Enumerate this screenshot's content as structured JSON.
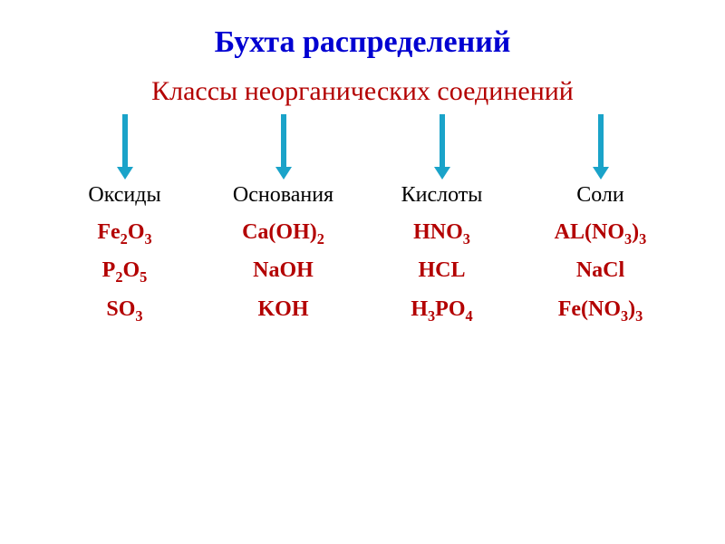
{
  "header": {
    "title": "Бухта распределений",
    "title_color": "#0000d1",
    "title_fontsize": 34,
    "subtitle": "Классы неорганических соединений",
    "subtitle_color": "#b30000",
    "subtitle_fontsize": 30,
    "subtitle_margin_top": 18
  },
  "arrow": {
    "shaft_color": "#1aa3c9",
    "head_color": "#1aa3c9",
    "count": 4,
    "length": 72,
    "shaft_width": 6,
    "head_width": 18,
    "head_height": 14
  },
  "columns": {
    "header_fontsize": 24,
    "header_color": "#000000",
    "formula_color": "#b30000",
    "formula_fontsize": 24,
    "list": [
      {
        "header": "Оксиды",
        "items": [
          {
            "html": "Fe<sub>2</sub>O<sub>3</sub>"
          },
          {
            "html": "P<sub>2</sub>O<sub>5</sub>"
          },
          {
            "html": "SO<sub>3</sub>"
          }
        ]
      },
      {
        "header": "Основания",
        "items": [
          {
            "html": "Ca(OH)<sub>2</sub>"
          },
          {
            "html": "NaOH"
          },
          {
            "html": "KOH"
          }
        ]
      },
      {
        "header": "Кислоты",
        "items": [
          {
            "html": "HNO<sub>3</sub>",
            "bold_extra": true
          },
          {
            "html": "HCL"
          },
          {
            "html": "H<sub>3</sub>PO<sub>4</sub>"
          }
        ]
      },
      {
        "header": "Соли",
        "items": [
          {
            "html": "AL(NO<sub>3</sub>)<sub>3</sub>"
          },
          {
            "html": "NaCl"
          },
          {
            "html": "Fe(NO<sub>3</sub>)<sub>3</sub>"
          }
        ]
      }
    ]
  },
  "background_color": "#ffffff"
}
